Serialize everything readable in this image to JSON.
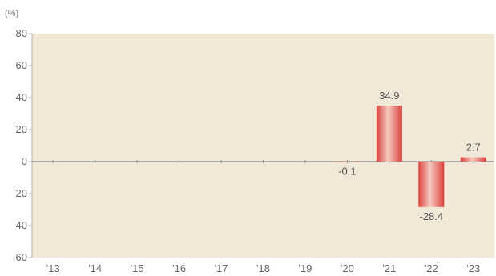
{
  "chart_data": {
    "type": "bar",
    "title": "",
    "unit_label": "(%)",
    "xlabel": "",
    "ylabel": "",
    "categories": [
      "'13",
      "'14",
      "'15",
      "'16",
      "'17",
      "'18",
      "'19",
      "'20",
      "'21",
      "'22",
      "'23"
    ],
    "values": [
      null,
      null,
      null,
      null,
      null,
      null,
      null,
      -0.1,
      34.9,
      -28.4,
      2.7
    ],
    "data_labels": [
      "",
      "",
      "",
      "",
      "",
      "",
      "",
      "-0.1",
      "34.9",
      "-28.4",
      "2.7"
    ],
    "ylim": [
      -60,
      80
    ],
    "yticks": [
      80,
      60,
      40,
      20,
      0,
      -20,
      -40,
      -60
    ],
    "grid": false,
    "legend": "none",
    "colors": {
      "plot_background": "#f2e8d8",
      "bar_dark": "#d8423a",
      "bar_light": "#f6c9c0",
      "axis": "#b9b2a6",
      "zero_line": "#8a8a8a"
    }
  }
}
